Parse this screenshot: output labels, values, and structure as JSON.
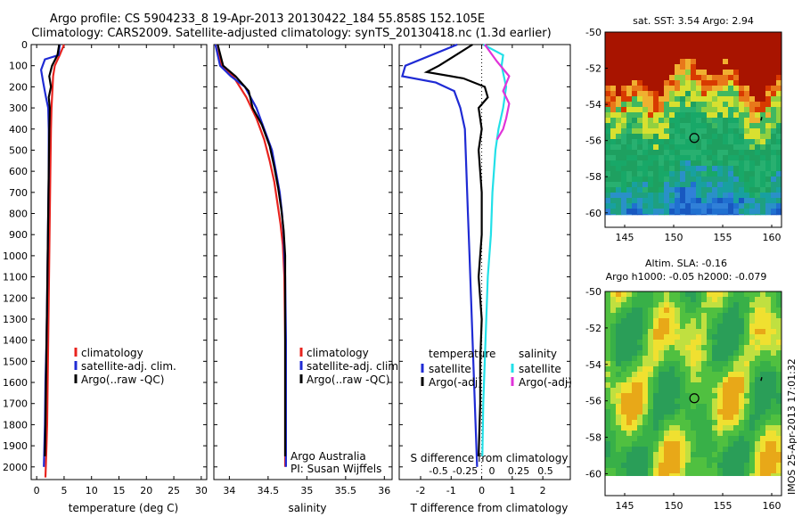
{
  "header": {
    "line1": "Argo profile: CS 5904233_8 19-Apr-2013 20130422_184 55.858S 152.105E",
    "line2": "Climatology: CARS2009. Satellite-adjusted climatology: synTS_20130418.nc (1.3d earlier)"
  },
  "colors": {
    "climatology": "#e8231e",
    "satellite": "#1f2bd4",
    "argo": "#000000",
    "salinity_satellite": "#22e0e8",
    "salinity_argo": "#e033d9"
  },
  "chart_data": [
    {
      "id": "temperature",
      "type": "line",
      "xlabel": "temperature (deg C)",
      "xlim": [
        -1,
        31
      ],
      "xticks": [
        0,
        5,
        10,
        15,
        20,
        25,
        30
      ],
      "ylim": [
        2060,
        0
      ],
      "yticks": [
        0,
        100,
        200,
        300,
        400,
        500,
        600,
        700,
        800,
        900,
        1000,
        1100,
        1200,
        1300,
        1400,
        1500,
        1600,
        1700,
        1800,
        1900,
        2000
      ],
      "legend": [
        "climatology",
        "satellite-adj. clim.",
        "Argo(..raw -QC)"
      ],
      "series": [
        {
          "key": "climatology",
          "x": [
            5.0,
            4.2,
            3.3,
            3.0,
            2.9,
            2.7,
            2.6,
            2.5,
            2.4,
            2.3,
            2.2,
            2.1,
            2.0,
            1.9,
            1.8,
            1.6
          ],
          "y": [
            0,
            50,
            100,
            150,
            200,
            300,
            400,
            600,
            800,
            1000,
            1200,
            1400,
            1600,
            1800,
            1900,
            2050
          ]
        },
        {
          "key": "satellite",
          "x": [
            4.2,
            4.0,
            1.5,
            0.8,
            1.2,
            1.7,
            2.1,
            2.2,
            2.2,
            2.1,
            2.0,
            1.9,
            1.8,
            1.6,
            1.5,
            1.3
          ],
          "y": [
            0,
            50,
            70,
            120,
            180,
            250,
            300,
            400,
            600,
            800,
            1000,
            1200,
            1400,
            1600,
            1800,
            2000
          ]
        },
        {
          "key": "argo",
          "x": [
            4.1,
            3.8,
            2.8,
            2.3,
            2.6,
            2.2,
            2.4,
            2.3,
            2.2,
            2.1,
            2.0,
            1.9,
            1.8,
            1.7,
            1.6,
            1.5
          ],
          "y": [
            0,
            50,
            100,
            150,
            200,
            250,
            300,
            400,
            600,
            800,
            1000,
            1200,
            1400,
            1600,
            1800,
            1950
          ]
        }
      ]
    },
    {
      "id": "salinity",
      "type": "line",
      "xlabel": "salinity",
      "xlim": [
        33.8,
        36.1
      ],
      "xticks": [
        34,
        34.5,
        35,
        35.5,
        36
      ],
      "ylim": [
        2060,
        0
      ],
      "legend": [
        "climatology",
        "satellite-adj. clim.",
        "Argo(..raw -QC)"
      ],
      "annotation": [
        "Argo Australia",
        "PI: Susan Wijffels"
      ],
      "series": [
        {
          "key": "climatology",
          "x": [
            33.82,
            33.9,
            34.05,
            34.22,
            34.35,
            34.45,
            34.52,
            34.58,
            34.62,
            34.66,
            34.69,
            34.71,
            34.72,
            34.72,
            34.72
          ],
          "y": [
            0,
            100,
            150,
            250,
            350,
            450,
            550,
            650,
            750,
            850,
            950,
            1100,
            1400,
            1700,
            2000
          ]
        },
        {
          "key": "satellite",
          "x": [
            33.82,
            33.88,
            34.02,
            34.2,
            34.35,
            34.45,
            34.55,
            34.6,
            34.65,
            34.68,
            34.7,
            34.72,
            34.73,
            34.73,
            34.73
          ],
          "y": [
            0,
            100,
            150,
            200,
            300,
            400,
            500,
            600,
            700,
            800,
            900,
            1100,
            1400,
            1700,
            2000
          ]
        },
        {
          "key": "argo",
          "x": [
            33.85,
            33.92,
            34.08,
            34.25,
            34.3,
            34.42,
            34.52,
            34.58,
            34.63,
            34.67,
            34.7,
            34.72,
            34.72,
            34.72
          ],
          "y": [
            0,
            100,
            150,
            220,
            300,
            380,
            480,
            580,
            680,
            780,
            880,
            1000,
            1300,
            1950
          ]
        }
      ]
    },
    {
      "id": "difference",
      "type": "line",
      "xlabel": "T difference from climatology",
      "toplabel": "S difference from climatology",
      "xlim": [
        -2.7,
        2.9
      ],
      "xticks": [
        -2,
        -1,
        0,
        1,
        2
      ],
      "top_ticks": [
        "-0.5",
        "-0.25",
        "0",
        "0.25",
        "0.5"
      ],
      "ylim": [
        2060,
        0
      ],
      "legend_left_title": "temperature",
      "legend_right_title": "salinity",
      "legend_left": [
        "satellite",
        "Argo(-adj)"
      ],
      "legend_right": [
        "satellite",
        "Argo(-adj)"
      ],
      "series": [
        {
          "key": "satellite",
          "x": [
            -0.8,
            -2.5,
            -2.6,
            -1.5,
            -0.9,
            -0.7,
            -0.55,
            -0.5,
            -0.45,
            -0.4,
            -0.35,
            -0.3,
            -0.25,
            -0.2,
            -0.15
          ],
          "y": [
            0,
            100,
            150,
            180,
            220,
            300,
            400,
            600,
            800,
            1000,
            1200,
            1400,
            1600,
            1800,
            2000
          ]
        },
        {
          "key": "argo",
          "x": [
            -0.3,
            -1.4,
            -1.8,
            -0.6,
            0.1,
            0.2,
            -0.1,
            0.0,
            -0.1,
            0.0,
            0.0,
            -0.1,
            0.0,
            -0.05,
            -0.05,
            -0.1
          ],
          "y": [
            0,
            100,
            130,
            160,
            200,
            250,
            300,
            400,
            500,
            700,
            900,
            1100,
            1300,
            1500,
            1700,
            1950
          ]
        },
        {
          "key": "salinity_satellite",
          "x": [
            0.05,
            0.7,
            0.65,
            0.8,
            0.7,
            0.55,
            0.45,
            0.35,
            0.3,
            0.2,
            0.15,
            0.1,
            0.05,
            0.02
          ],
          "y": [
            0,
            50,
            100,
            200,
            300,
            400,
            500,
            700,
            900,
            1100,
            1300,
            1500,
            1700,
            1950
          ]
        },
        {
          "key": "salinity_argo",
          "x": [
            0.1,
            0.5,
            0.9,
            0.7,
            0.9,
            0.8,
            0.7,
            0.5
          ],
          "y": [
            0,
            80,
            150,
            220,
            280,
            350,
            400,
            450
          ]
        }
      ]
    },
    {
      "id": "sst_map",
      "type": "heatmap",
      "title": "sat. SST: 3.54 Argo: 2.94",
      "xlim": [
        143,
        161
      ],
      "ylim": [
        -60.8,
        -50
      ],
      "xticks": [
        145,
        150,
        155,
        160
      ],
      "yticks": [
        -50,
        -52,
        -54,
        -56,
        -58,
        -60
      ],
      "marker": {
        "lon": 152.105,
        "lat": -55.858
      }
    },
    {
      "id": "sla_map",
      "type": "heatmap",
      "title_lines": [
        "Altim. SLA: -0.16",
        "Argo h1000: -0.05 h2000: -0.079"
      ],
      "xlim": [
        143,
        161
      ],
      "ylim": [
        -61.2,
        -50
      ],
      "xticks": [
        145,
        150,
        155,
        160
      ],
      "yticks": [
        -50,
        -52,
        -54,
        -56,
        -58,
        -60
      ],
      "marker": {
        "lon": 152.105,
        "lat": -55.858
      }
    }
  ],
  "footer": {
    "stamp": "IMOS 25-Apr-2013 17:01:32"
  }
}
